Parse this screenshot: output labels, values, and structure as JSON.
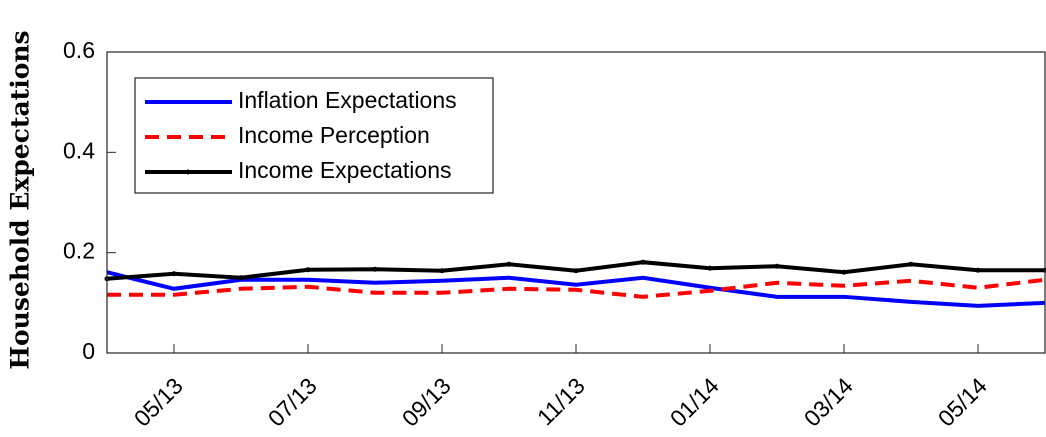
{
  "chart_data": {
    "type": "line",
    "y_label": "Household Expectations",
    "categories": [
      null,
      "05/13",
      null,
      "07/13",
      null,
      "09/13",
      null,
      "11/13",
      null,
      "01/14",
      null,
      "03/14",
      null,
      "05/14",
      null
    ],
    "series": [
      {
        "name": "Inflation Expectations",
        "color": "#0000ff",
        "dash": "solid",
        "marker": false,
        "values": [
          0.161,
          0.128,
          0.146,
          0.146,
          0.14,
          0.144,
          0.15,
          0.136,
          0.15,
          0.13,
          0.112,
          0.112,
          0.102,
          0.094,
          0.1
        ]
      },
      {
        "name": "Income Perception",
        "color": "#ff0000",
        "dash": "dashed",
        "marker": false,
        "values": [
          0.116,
          0.116,
          0.128,
          0.132,
          0.12,
          0.12,
          0.128,
          0.126,
          0.112,
          0.124,
          0.14,
          0.134,
          0.144,
          0.13,
          0.146
        ]
      },
      {
        "name": "Income Expectations",
        "color": "#000000",
        "dash": "solid",
        "marker": true,
        "values": [
          0.148,
          0.158,
          0.15,
          0.166,
          0.167,
          0.164,
          0.177,
          0.164,
          0.181,
          0.169,
          0.173,
          0.161,
          0.177,
          0.165,
          0.165
        ]
      }
    ],
    "ylim": [
      0,
      0.6
    ],
    "yticks": [
      0,
      0.2,
      0.4,
      0.6
    ],
    "grid": false,
    "legend": "upper-left"
  }
}
